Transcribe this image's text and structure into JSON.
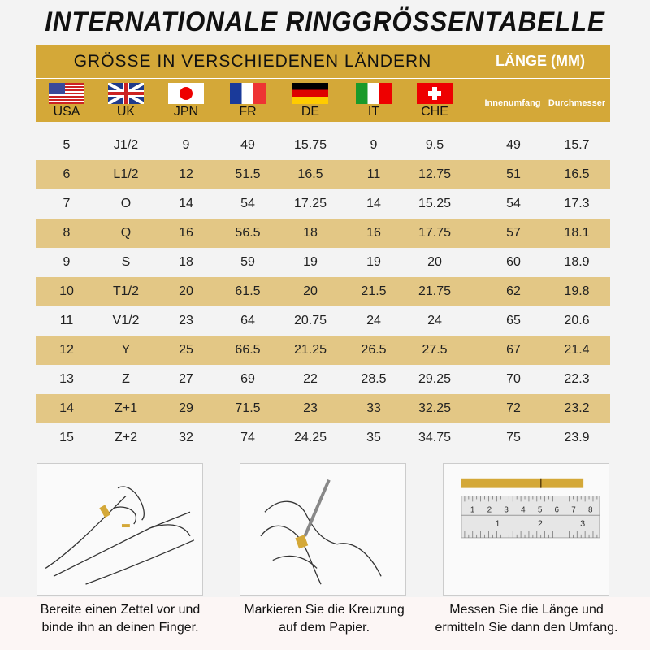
{
  "title": "INTERNATIONALE RINGGRÖSSENTABELLE",
  "header": {
    "countries_label": "GRÖSSE IN VERSCHIEDENEN LÄNDERN",
    "length_label": "LÄNGE (MM)",
    "countries": [
      {
        "code": "USA",
        "flag": "usa-flag"
      },
      {
        "code": "UK",
        "flag": "uk-flag"
      },
      {
        "code": "JPN",
        "flag": "japan-flag"
      },
      {
        "code": "FR",
        "flag": "france-flag"
      },
      {
        "code": "DE",
        "flag": "germany-flag"
      },
      {
        "code": "IT",
        "flag": "italy-flag"
      },
      {
        "code": "CHE",
        "flag": "switzerland-flag"
      }
    ],
    "length_columns": [
      "Innenumfang",
      "Durchmesser"
    ]
  },
  "rows": [
    [
      "5",
      "J1/2",
      "9",
      "49",
      "15.75",
      "9",
      "9.5",
      "49",
      "15.7"
    ],
    [
      "6",
      "L1/2",
      "12",
      "51.5",
      "16.5",
      "11",
      "12.75",
      "51",
      "16.5"
    ],
    [
      "7",
      "O",
      "14",
      "54",
      "17.25",
      "14",
      "15.25",
      "54",
      "17.3"
    ],
    [
      "8",
      "Q",
      "16",
      "56.5",
      "18",
      "16",
      "17.75",
      "57",
      "18.1"
    ],
    [
      "9",
      "S",
      "18",
      "59",
      "19",
      "19",
      "20",
      "60",
      "18.9"
    ],
    [
      "10",
      "T1/2",
      "20",
      "61.5",
      "20",
      "21.5",
      "21.75",
      "62",
      "19.8"
    ],
    [
      "11",
      "V1/2",
      "23",
      "64",
      "20.75",
      "24",
      "24",
      "65",
      "20.6"
    ],
    [
      "12",
      "Y",
      "25",
      "66.5",
      "21.25",
      "26.5",
      "27.5",
      "67",
      "21.4"
    ],
    [
      "13",
      "Z",
      "27",
      "69",
      "22",
      "28.5",
      "29.25",
      "70",
      "22.3"
    ],
    [
      "14",
      "Z+1",
      "29",
      "71.5",
      "23",
      "33",
      "32.25",
      "72",
      "23.2"
    ],
    [
      "15",
      "Z+2",
      "32",
      "74",
      "24.25",
      "35",
      "34.75",
      "75",
      "23.9"
    ]
  ],
  "steps": [
    {
      "line1": "Bereite einen Zettel vor und",
      "line2": "binde ihn an deinen Finger."
    },
    {
      "line1": "Markieren Sie die Kreuzung",
      "line2": "auf dem Papier."
    },
    {
      "line1": "Messen Sie die Länge und",
      "line2": "ermitteln Sie dann den Umfang."
    }
  ],
  "ruler": {
    "top_marks": [
      "1",
      "2",
      "3",
      "4",
      "5",
      "6",
      "7",
      "8"
    ],
    "bottom_marks": [
      "1",
      "2",
      "3"
    ]
  },
  "colors": {
    "header": "#d4a838",
    "stripe": "#e3c785",
    "background": "#f3f3f3"
  }
}
